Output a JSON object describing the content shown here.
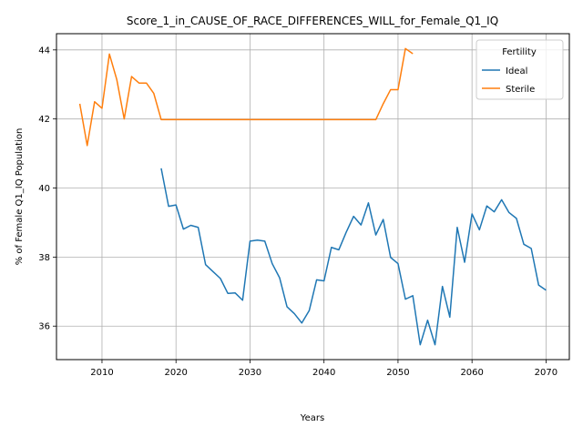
{
  "chart_data": {
    "type": "line",
    "title": "Score_1_in_CAUSE_OF_RACE_DIFFERENCES_WILL_for_Female_Q1_IQ",
    "xlabel": "Years",
    "ylabel": "% of Female Q1_IQ Population",
    "xlim": [
      2003.85,
      2073.15
    ],
    "ylim": [
      35.03,
      44.47
    ],
    "xticks": [
      2010,
      2020,
      2030,
      2040,
      2050,
      2060,
      2070
    ],
    "yticks": [
      36,
      38,
      40,
      42,
      44
    ],
    "grid": true,
    "legend": {
      "title": "Fertility",
      "placement": "top-right"
    },
    "series": [
      {
        "name": "Ideal",
        "color": "#1f77b4",
        "x": [
          2018,
          2019,
          2020,
          2021,
          2022,
          2023,
          2024,
          2025,
          2026,
          2027,
          2028,
          2029,
          2030,
          2031,
          2032,
          2033,
          2034,
          2035,
          2036,
          2037,
          2038,
          2039,
          2040,
          2041,
          2042,
          2043,
          2044,
          2045,
          2046,
          2047,
          2048,
          2049,
          2050,
          2051,
          2052,
          2053,
          2054,
          2055,
          2056,
          2057,
          2058,
          2059,
          2060,
          2061,
          2062,
          2063,
          2064,
          2065,
          2066,
          2067,
          2068,
          2069,
          2070
        ],
        "y": [
          40.57,
          39.47,
          39.51,
          38.81,
          38.92,
          38.86,
          37.78,
          37.58,
          37.38,
          36.95,
          36.96,
          36.75,
          38.46,
          38.49,
          38.46,
          37.81,
          37.4,
          36.56,
          36.36,
          36.09,
          36.45,
          37.34,
          37.31,
          38.28,
          38.21,
          38.72,
          39.18,
          38.93,
          39.57,
          38.64,
          39.09,
          37.99,
          37.81,
          36.78,
          36.88,
          35.46,
          36.17,
          35.46,
          37.15,
          36.26,
          38.86,
          37.85,
          39.25,
          38.79,
          39.48,
          39.31,
          39.66,
          39.29,
          39.12,
          38.37,
          38.25,
          37.19,
          37.04
        ]
      },
      {
        "name": "Sterile",
        "color": "#ff7f0e",
        "x": [
          2007,
          2008,
          2009,
          2010,
          2011,
          2012,
          2013,
          2014,
          2015,
          2016,
          2017,
          2018,
          2019,
          2020,
          2021,
          2022,
          2023,
          2024,
          2025,
          2026,
          2027,
          2028,
          2029,
          2030,
          2031,
          2032,
          2033,
          2034,
          2035,
          2036,
          2037,
          2038,
          2039,
          2040,
          2041,
          2042,
          2043,
          2044,
          2045,
          2046,
          2047,
          2048,
          2049,
          2050,
          2051,
          2052
        ],
        "y": [
          42.44,
          41.23,
          42.5,
          42.31,
          43.88,
          43.14,
          42.0,
          43.23,
          43.04,
          43.04,
          42.74,
          41.98,
          41.98,
          41.98,
          41.98,
          41.98,
          41.98,
          41.98,
          41.98,
          41.98,
          41.98,
          41.98,
          41.98,
          41.98,
          41.98,
          41.98,
          41.98,
          41.98,
          41.98,
          41.98,
          41.98,
          41.98,
          41.98,
          41.98,
          41.98,
          41.98,
          41.98,
          41.98,
          41.98,
          41.98,
          41.98,
          42.44,
          42.85,
          42.85,
          44.04,
          43.89
        ]
      }
    ]
  }
}
